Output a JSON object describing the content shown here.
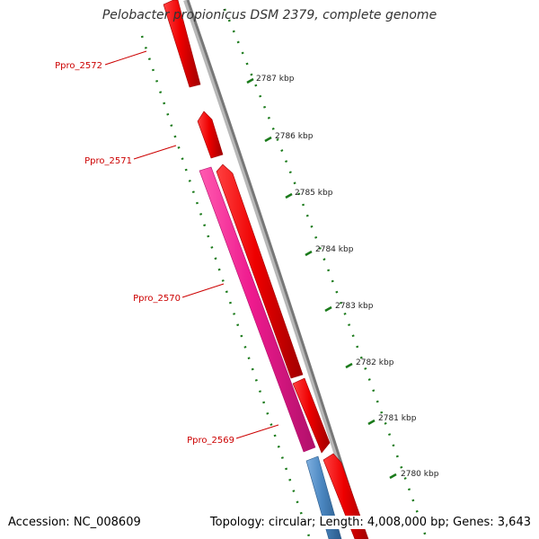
{
  "title": "Pelobacter propionicus DSM 2379, complete genome",
  "footer": {
    "accession": "Accession: NC_008609",
    "summary": "Topology: circular; Length: 4,008,000 bp; Genes: 3,643"
  },
  "genes": [
    {
      "label": "Ppro_2572"
    },
    {
      "label": "Ppro_2571"
    },
    {
      "label": "Ppro_2570"
    },
    {
      "label": "Ppro_2569"
    }
  ],
  "scale_ticks": [
    {
      "label": "2787 kbp"
    },
    {
      "label": "2786 kbp"
    },
    {
      "label": "2785 kbp"
    },
    {
      "label": "2784 kbp"
    },
    {
      "label": "2783 kbp"
    },
    {
      "label": "2782 kbp"
    },
    {
      "label": "2781 kbp"
    },
    {
      "label": "2780 kbp"
    }
  ],
  "colors": {
    "gene_forward": "#ee0000",
    "gene_forward_dark": "#a00000",
    "gene_highlight": "#ee1a8e",
    "gene_highlight_dark": "#b0106a",
    "gene_other": "#4a86c0",
    "gene_label": "#cc0000",
    "backbone": "#888888",
    "tick": "#1a7a1a"
  }
}
